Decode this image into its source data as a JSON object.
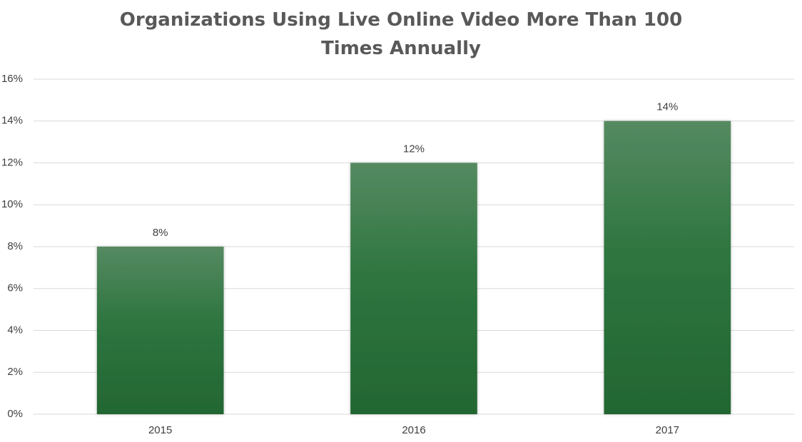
{
  "chart_data": {
    "type": "bar",
    "title": "Organizations Using Live Online Video More Than 100 Times Annually",
    "categories": [
      "2015",
      "2016",
      "2017"
    ],
    "values": [
      8,
      12,
      14
    ],
    "value_labels": [
      "8%",
      "12%",
      "14%"
    ],
    "color": "#2e7540",
    "ylim": [
      0,
      16
    ],
    "yticks": [
      {
        "value": 0,
        "label": "0%"
      },
      {
        "value": 2,
        "label": "2%"
      },
      {
        "value": 4,
        "label": "4%"
      },
      {
        "value": 6,
        "label": "6%"
      },
      {
        "value": 8,
        "label": "8%"
      },
      {
        "value": 10,
        "label": "10%"
      },
      {
        "value": 12,
        "label": "12%"
      },
      {
        "value": 14,
        "label": "14%"
      },
      {
        "value": 16,
        "label": "16%"
      }
    ],
    "grid": true
  }
}
